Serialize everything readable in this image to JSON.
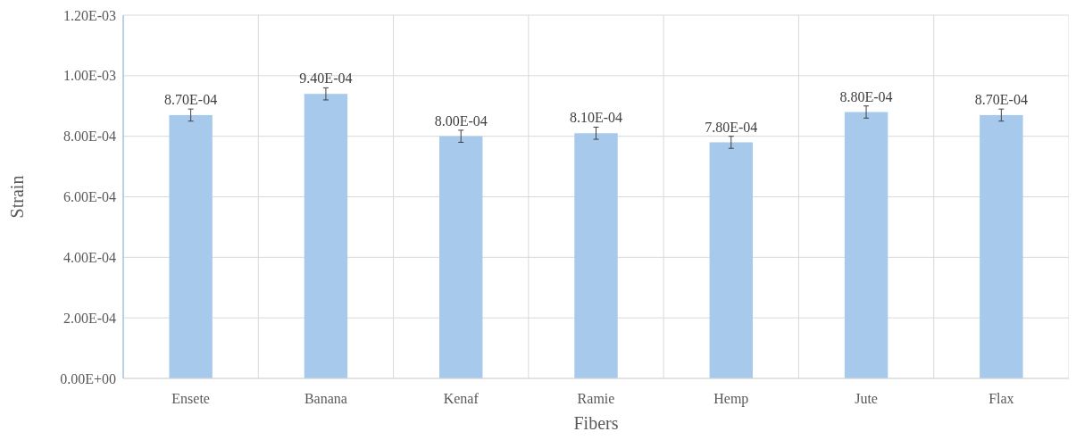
{
  "chart_data": {
    "type": "bar",
    "xlabel": "Fibers",
    "ylabel": "Strain",
    "categories": [
      "Ensete",
      "Banana",
      "Kenaf",
      "Ramie",
      "Hemp",
      "Jute",
      "Flax"
    ],
    "values": [
      0.00087,
      0.00094,
      0.0008,
      0.00081,
      0.00078,
      0.00088,
      0.00087
    ],
    "errors": [
      2e-05,
      2e-05,
      2e-05,
      2e-05,
      2e-05,
      2e-05,
      2e-05
    ],
    "value_labels": [
      "8.70E-04",
      "9.40E-04",
      "8.00E-04",
      "8.10E-04",
      "7.80E-04",
      "8.80E-04",
      "8.70E-04"
    ],
    "color": "#a7c9ec",
    "ylim": [
      0,
      0.0012
    ],
    "yticks": [
      {
        "value": 0,
        "label": "0.00E+00"
      },
      {
        "value": 0.0002,
        "label": "2.00E-04"
      },
      {
        "value": 0.0004,
        "label": "4.00E-04"
      },
      {
        "value": 0.0006,
        "label": "6.00E-04"
      },
      {
        "value": 0.0008,
        "label": "8.00E-04"
      },
      {
        "value": 0.001,
        "label": "1.00E-03"
      },
      {
        "value": 0.0012,
        "label": "1.20E-03"
      }
    ],
    "grid": true
  }
}
